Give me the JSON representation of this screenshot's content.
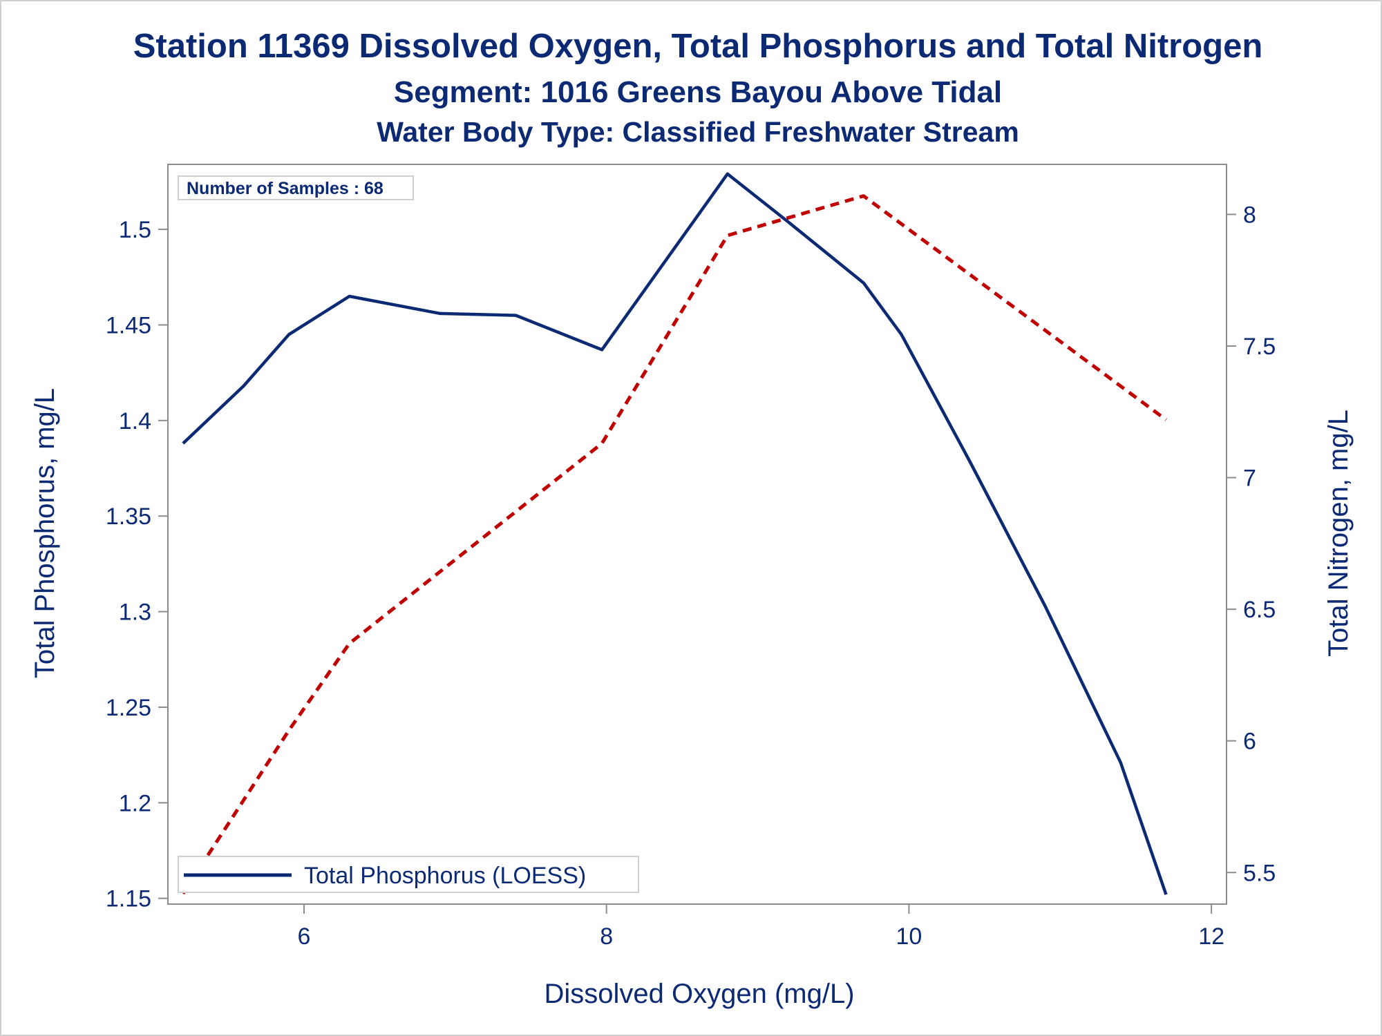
{
  "chart_data": {
    "type": "line",
    "title": "Station 11369  Dissolved Oxygen, Total Phosphorus and Total Nitrogen",
    "subtitle": "Segment: 1016  Greens Bayou Above Tidal",
    "subtitle2": "Water Body Type: Classified Freshwater Stream",
    "xlabel": "Dissolved Oxygen (mg/L)",
    "ylabel": "Total Phosphorus, mg/L",
    "y2label": "Total Nitrogen, mg/L",
    "xlim": [
      5.1,
      12.1
    ],
    "ylim": [
      1.147,
      1.534
    ],
    "y2lim": [
      5.38,
      8.19
    ],
    "xticks": [
      "6",
      "8",
      "10",
      "12"
    ],
    "yticks": [
      "1.15",
      "1.2",
      "1.25",
      "1.3",
      "1.35",
      "1.4",
      "1.45",
      "1.5"
    ],
    "y2ticks": [
      "5.5",
      "6",
      "6.5",
      "7",
      "7.5",
      "8"
    ],
    "inset_text": "Number of Samples : 68",
    "legend": [
      "Total Phosphorus (LOESS)"
    ],
    "legend_position": "bottom-left",
    "grid": false,
    "series": [
      {
        "name": "Total Phosphorus (LOESS)",
        "axis": "left",
        "color": "#0b2a73",
        "style": "solid",
        "x": [
          5.2,
          5.6,
          5.9,
          6.3,
          6.9,
          7.4,
          7.97,
          8.8,
          9.2,
          9.7,
          9.95,
          10.4,
          10.9,
          11.4,
          11.7
        ],
        "y": [
          1.388,
          1.418,
          1.445,
          1.465,
          1.456,
          1.455,
          1.437,
          1.529,
          1.504,
          1.472,
          1.445,
          1.379,
          1.303,
          1.221,
          1.152
        ]
      },
      {
        "name": "Total Nitrogen",
        "axis": "right",
        "color": "#c00000",
        "style": "dashed",
        "x": [
          5.2,
          5.9,
          6.3,
          7.97,
          8.8,
          9.7,
          11.7
        ],
        "y": [
          5.42,
          6.04,
          6.37,
          7.13,
          7.92,
          8.07,
          7.22
        ]
      }
    ]
  }
}
